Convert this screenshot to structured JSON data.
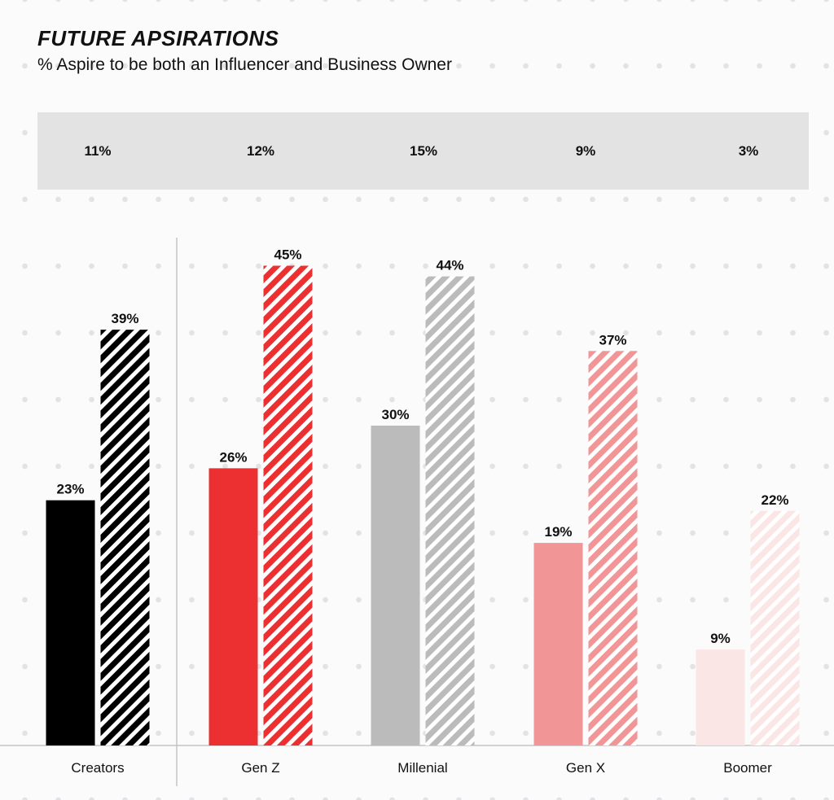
{
  "chart_data": {
    "type": "bar",
    "title": "FUTURE APSIRATIONS",
    "subtitle": "% Aspire to be both an Influencer and Business Owner",
    "categories": [
      "Creators",
      "Gen Z",
      "Millenial",
      "Gen X",
      "Boomer"
    ],
    "band_values": [
      "11%",
      "12%",
      "15%",
      "9%",
      "3%"
    ],
    "series": [
      {
        "values": [
          23,
          26,
          30,
          19,
          9
        ],
        "style": "solid"
      },
      {
        "values": [
          39,
          45,
          44,
          37,
          22
        ],
        "style": "hatched"
      }
    ],
    "value_labels": [
      [
        "23%",
        "26%",
        "30%",
        "19%",
        "9%"
      ],
      [
        "39%",
        "45%",
        "44%",
        "37%",
        "22%"
      ]
    ],
    "colors": [
      "#000000",
      "#ec3032",
      "#bbbbbc",
      "#f29596",
      "#fbe6e6"
    ],
    "ylim": [
      0,
      45
    ],
    "grid": false,
    "legend": "none"
  }
}
